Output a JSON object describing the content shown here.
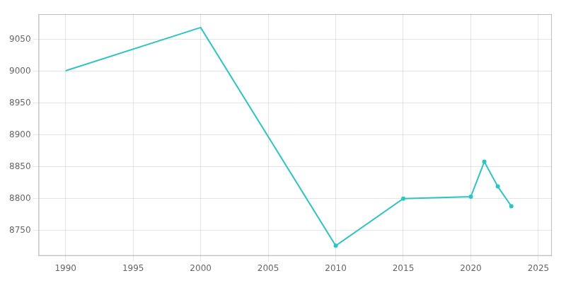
{
  "chart_data": {
    "type": "line",
    "x": [
      1990,
      2000,
      2010,
      2015,
      2020,
      2021,
      2022,
      2023
    ],
    "series": [
      {
        "color": "#2EC4C4",
        "line_style": "solid",
        "values": [
          9001,
          9069,
          8726,
          8800,
          8803,
          8858,
          8819,
          8788
        ]
      },
      {
        "color": "#2EC4C4",
        "line_style": "none",
        "marker": "circle",
        "values": [
          null,
          null,
          8726,
          8800,
          8803,
          8858,
          8819,
          8788
        ]
      }
    ],
    "xlim": [
      1988,
      2026
    ],
    "ylim": [
      8710,
      9090
    ],
    "xticks": [
      1990,
      1995,
      2000,
      2005,
      2010,
      2015,
      2020,
      2025
    ],
    "yticks": [
      8750,
      8800,
      8850,
      8900,
      8950,
      9000,
      9050
    ],
    "grid": true
  }
}
